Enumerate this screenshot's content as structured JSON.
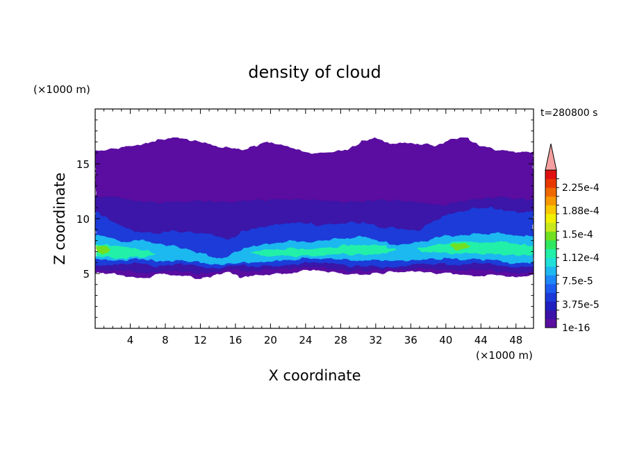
{
  "chart_data": {
    "type": "heatmap",
    "title": "density of cloud",
    "time_label": "t=280800 s",
    "xlabel": "X coordinate",
    "ylabel": "Z coordinate",
    "x_unit": "(×1000 m)",
    "y_unit": "(×1000 m)",
    "xlim": [
      0,
      50
    ],
    "ylim": [
      0,
      20
    ],
    "x_ticks": [
      4,
      8,
      12,
      16,
      20,
      24,
      28,
      32,
      36,
      40,
      44,
      48
    ],
    "y_ticks": [
      5,
      10,
      15
    ],
    "colorbar": {
      "labels": [
        "1e-16",
        "3.75e-5",
        "7.5e-5",
        "1.12e-4",
        "1.5e-4",
        "1.88e-4",
        "2.25e-4"
      ],
      "colors": [
        "#5a0fa0",
        "#3a12a8",
        "#1f1fc0",
        "#1c3ad8",
        "#1c5cf0",
        "#1e88f8",
        "#1fb8f0",
        "#20e0d8",
        "#22f0a8",
        "#30e860",
        "#70e020",
        "#c8e81c",
        "#f0f000",
        "#f8c800",
        "#f89800",
        "#f06800",
        "#e83800",
        "#e01010"
      ],
      "extend_color": "#f4a0a0",
      "extend": "max"
    },
    "layers": [
      {
        "level": "1e-16",
        "z_bottom_approx": 4.7,
        "z_top_approx": 16.5
      },
      {
        "level": "3.75e-5",
        "z_bottom_approx": 5.0,
        "z_top_approx": 11.5
      },
      {
        "level": "1.12e-4",
        "z_bottom_approx": 6.0,
        "z_top_approx": 8.5
      }
    ]
  }
}
